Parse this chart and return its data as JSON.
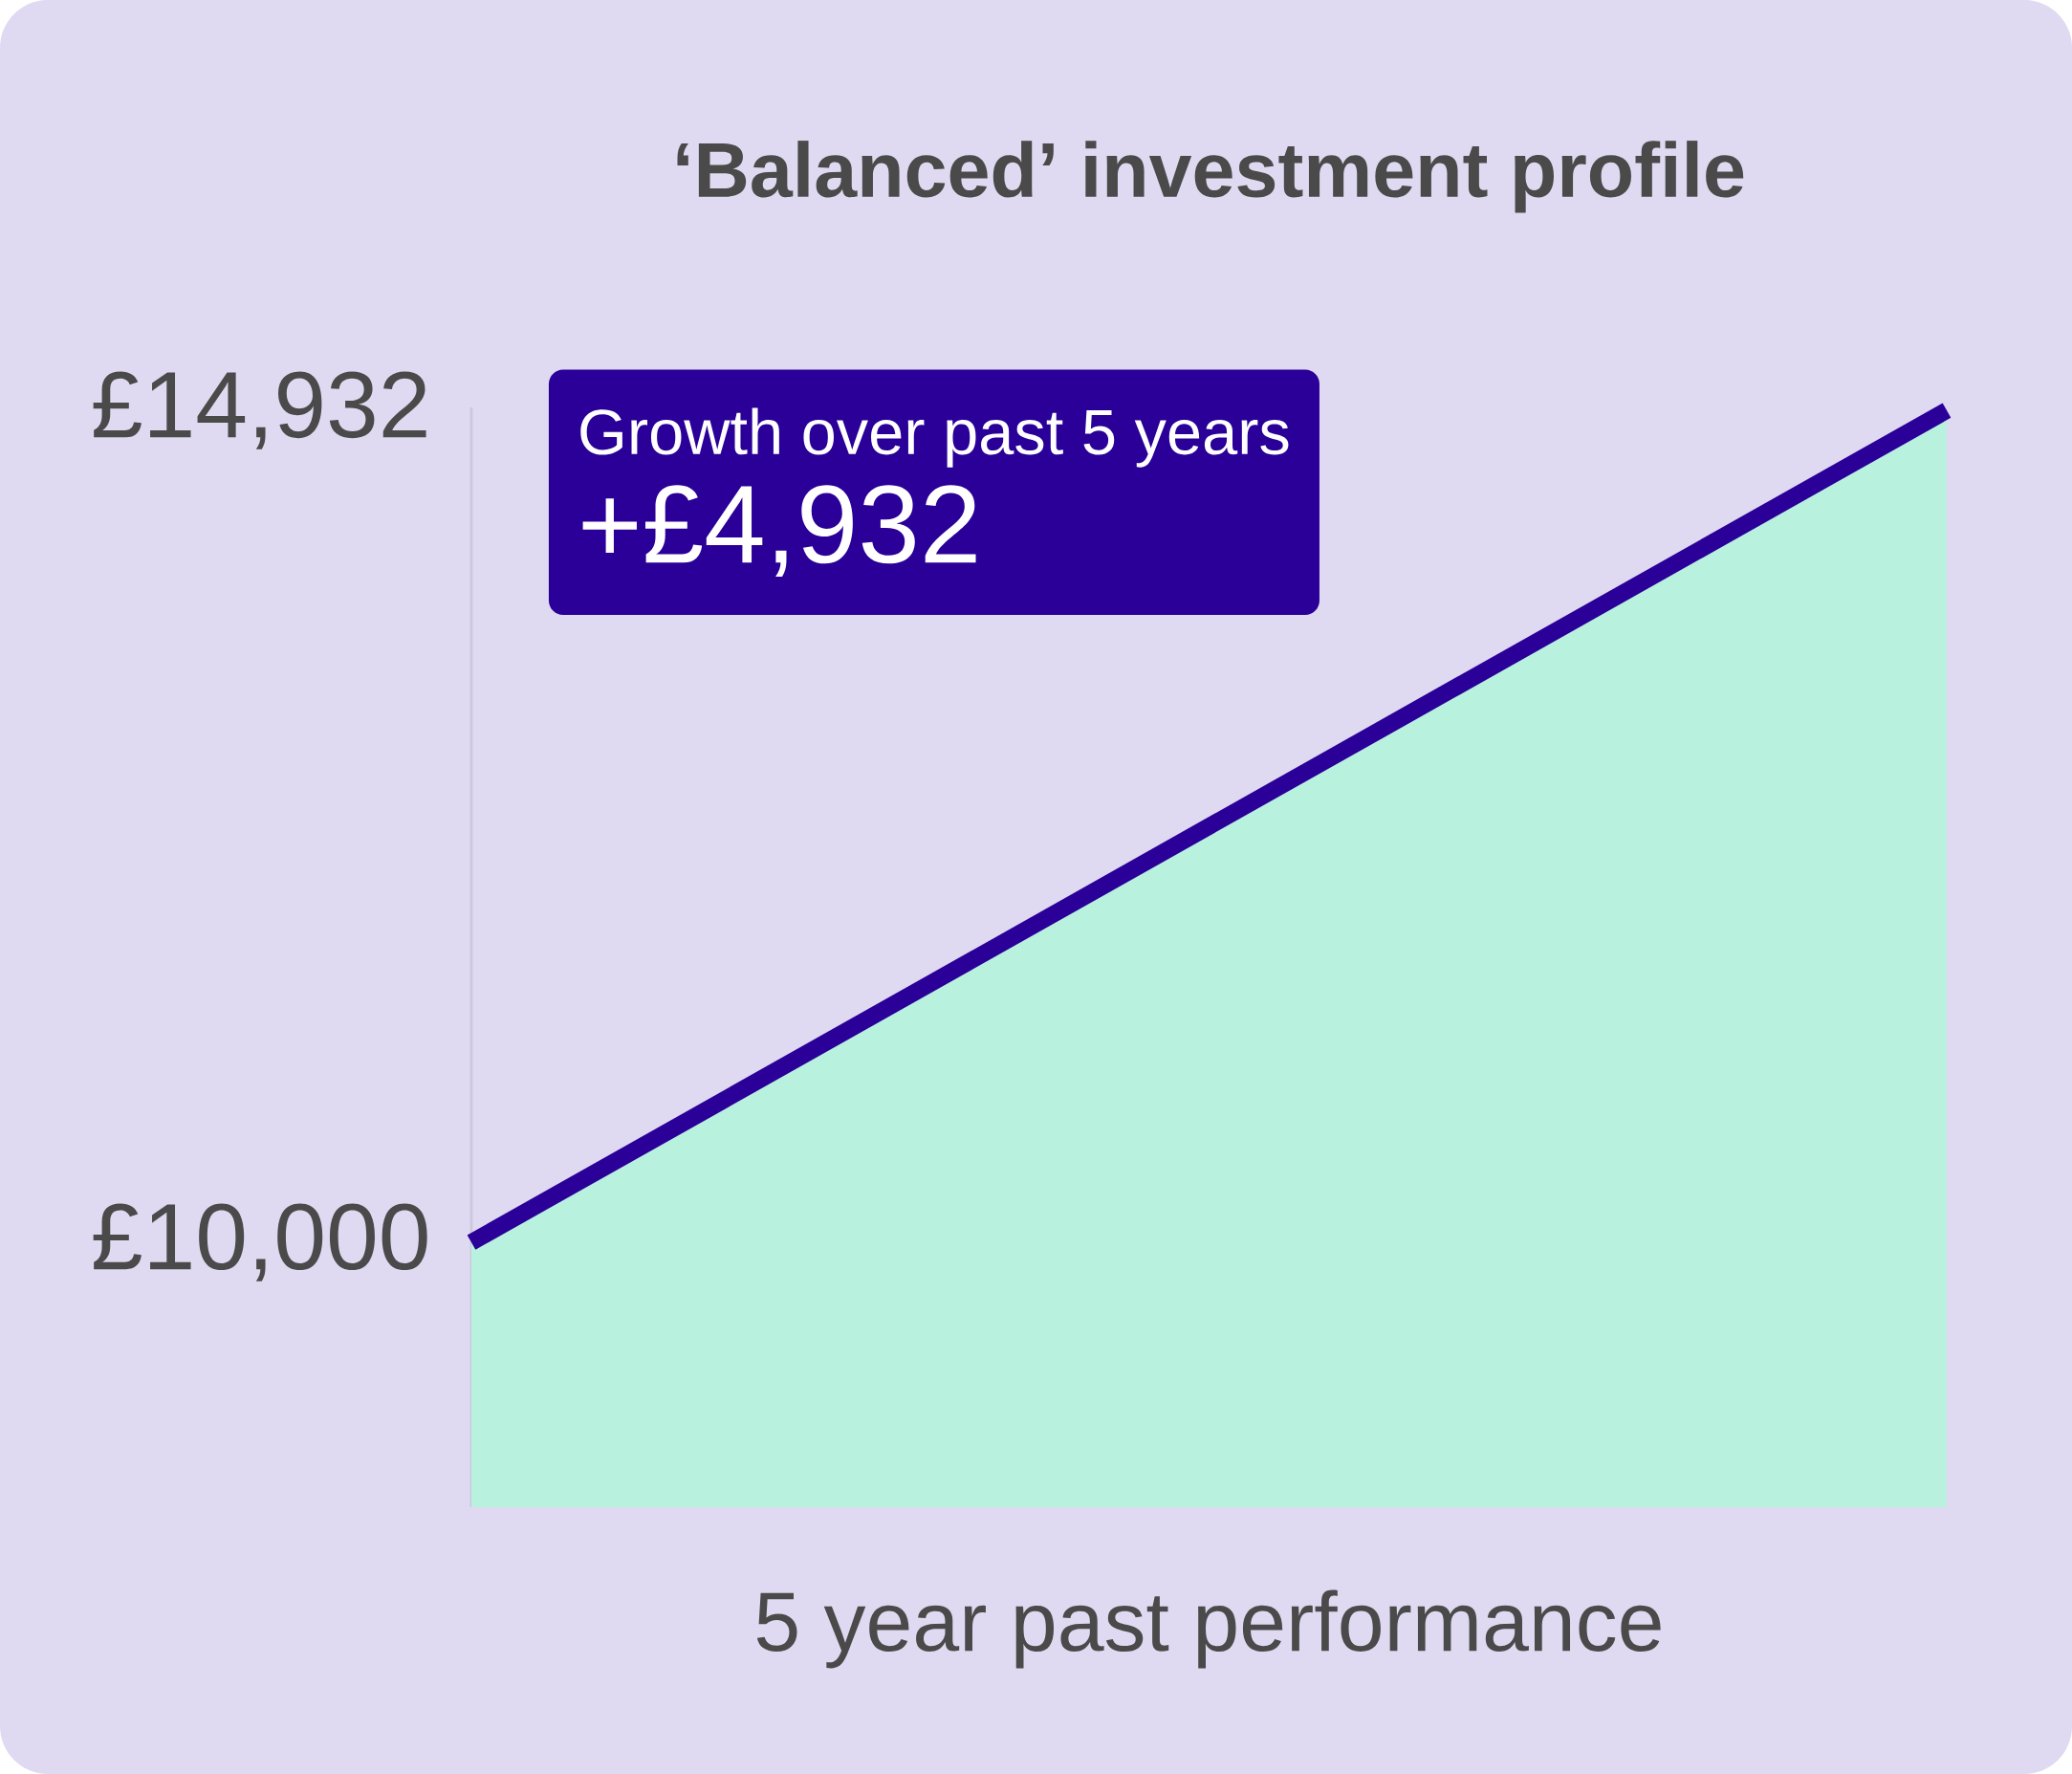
{
  "chart_data": {
    "type": "area",
    "title": "‘Balanced’ investment profile",
    "xlabel": "5 year past performance",
    "categories": [
      null,
      null
    ],
    "series": [
      {
        "type": "area",
        "color": "#b8f2df",
        "values": [
          10000,
          14932
        ]
      },
      {
        "type": "line",
        "color": "#2a0099",
        "values": [
          10000,
          14932
        ]
      }
    ],
    "ylim": [
      8430,
      14950
    ],
    "yticks": [
      {
        "value": 10000,
        "label": "£10,000"
      },
      {
        "value": 14932,
        "label": "£14,932"
      }
    ],
    "tick_labels": "y",
    "annotations": [
      "Growth over past 5 years",
      "+£4,932"
    ]
  }
}
